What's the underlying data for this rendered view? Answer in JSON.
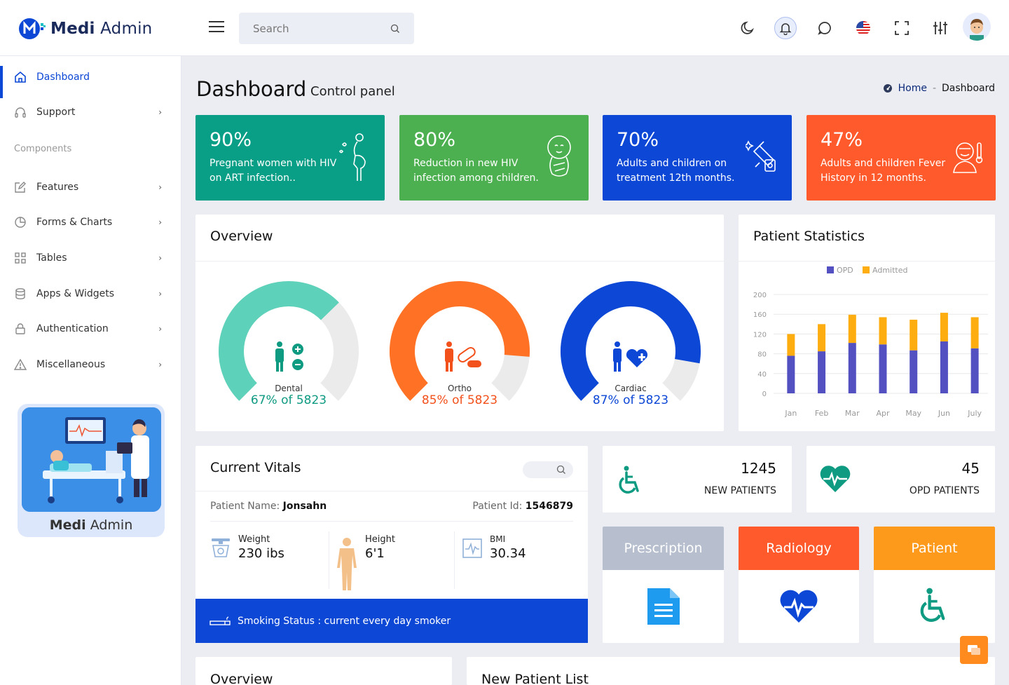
{
  "app": {
    "logo_bold": "Medi",
    "logo_rest": "Admin"
  },
  "search": {
    "placeholder": "Search"
  },
  "topbar_icons": [
    "moon-icon",
    "bell-icon",
    "chat-icon",
    "us-flag-icon",
    "fullscreen-icon",
    "sliders-icon",
    "avatar"
  ],
  "sidebar": {
    "items": [
      {
        "label": "Dashboard",
        "icon": "home-icon",
        "active": true
      },
      {
        "label": "Support",
        "icon": "headphones-icon"
      },
      {
        "label": "Features",
        "icon": "edit-icon"
      },
      {
        "label": "Forms & Charts",
        "icon": "pie-icon"
      },
      {
        "label": "Tables",
        "icon": "grid-icon"
      },
      {
        "label": "Apps & Widgets",
        "icon": "database-icon"
      },
      {
        "label": "Authentication",
        "icon": "lock-icon"
      },
      {
        "label": "Miscellaneous",
        "icon": "warning-icon"
      }
    ],
    "heading": "Components",
    "promo_title_bold": "Medi",
    "promo_title_rest": " Admin"
  },
  "page": {
    "title": "Dashboard",
    "subtitle": "Control panel"
  },
  "breadcrumb": {
    "home": "Home",
    "sep": "-",
    "current": "Dashboard"
  },
  "stat_cards": [
    {
      "pct": "90%",
      "desc": "Pregnant women with HIV on ART infection..",
      "color": "#099e86",
      "icon": "pregnant-icon"
    },
    {
      "pct": "80%",
      "desc": "Reduction in new HIV infection among children.",
      "color": "#4cb050",
      "icon": "baby-icon"
    },
    {
      "pct": "70%",
      "desc": "Adults and children on treatment 12th months.",
      "color": "#0c47d6",
      "icon": "medicine-icon"
    },
    {
      "pct": "47%",
      "desc": "Adults and children Fever History in 12 months.",
      "color": "#ff5a2c",
      "icon": "fever-icon"
    }
  ],
  "overview": {
    "title": "Overview",
    "gauges": [
      {
        "label": "Dental",
        "value": "67% of 5823",
        "fraction": 0.67,
        "color": "#5dd1b9",
        "text_color": "#0f9a82"
      },
      {
        "label": "Ortho",
        "value": "85% of 5823",
        "fraction": 0.85,
        "color": "#ff7225",
        "text_color": "#f2511b"
      },
      {
        "label": "Cardiac",
        "value": "87% of 5823",
        "fraction": 0.87,
        "color": "#0c47d6",
        "text_color": "#0c47d6"
      }
    ]
  },
  "patient_stats": {
    "title": "Patient Statistics"
  },
  "chart_data": {
    "type": "bar",
    "categories": [
      "Jan",
      "Feb",
      "Mar",
      "Apr",
      "May",
      "Jun",
      "July"
    ],
    "series": [
      {
        "name": "OPD",
        "values": [
          76,
          85,
          102,
          99,
          87,
          105,
          91
        ],
        "color": "#5350c1"
      },
      {
        "name": "Admitted",
        "values": [
          44,
          55,
          57,
          55,
          62,
          58,
          63
        ],
        "color": "#fdad0f"
      }
    ],
    "stacked": true,
    "ylim": [
      0,
      200
    ],
    "yticks": [
      0,
      40,
      80,
      120,
      160,
      200
    ],
    "legend": "top-center",
    "grid": true
  },
  "vitals": {
    "title": "Current Vitals",
    "patient_name_label": "Patient Name:",
    "patient_name": "Jonsahn",
    "patient_id_label": "Patient Id:",
    "patient_id": "1546879",
    "weight_label": "Weight",
    "weight": "230 ibs",
    "height_label": "Height",
    "height": "6'1",
    "bmi_label": "BMI",
    "bmi": "30.34",
    "smoking": "Smoking Status : current every day smoker"
  },
  "new_patients": {
    "count": "1245",
    "label": "NEW PATIENTS"
  },
  "opd_patients": {
    "count": "45",
    "label": "OPD PATIENTS"
  },
  "tiles": [
    {
      "label": "Prescription",
      "color": "#b7bfcf"
    },
    {
      "label": "Radiology",
      "color": "#ff5a2c"
    },
    {
      "label": "Patient",
      "color": "#fd9a1c"
    }
  ],
  "bottom": {
    "overview_title": "Overview",
    "new_patient_list_title": "New Patient List"
  }
}
